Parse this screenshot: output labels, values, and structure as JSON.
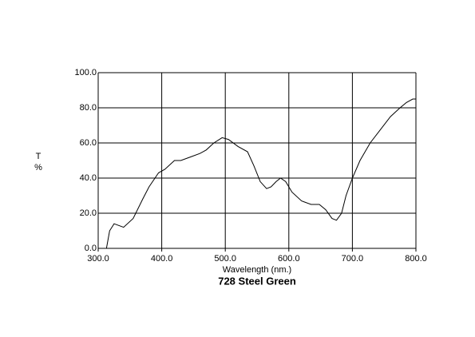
{
  "chart_data": {
    "type": "line",
    "title": "728 Steel Green",
    "xlabel": "Wavelength (nm.)",
    "ylabel_lines": [
      "T",
      "%"
    ],
    "xlim": [
      300,
      800
    ],
    "ylim": [
      0,
      100
    ],
    "xticks": [
      {
        "value": 300,
        "label": "300.0"
      },
      {
        "value": 400,
        "label": "400.0"
      },
      {
        "value": 500,
        "label": "500.0"
      },
      {
        "value": 600,
        "label": "600.0"
      },
      {
        "value": 700,
        "label": "700.0"
      },
      {
        "value": 800,
        "label": "800.0"
      }
    ],
    "yticks": [
      {
        "value": 0,
        "label": "0.0"
      },
      {
        "value": 20,
        "label": "20.0"
      },
      {
        "value": 40,
        "label": "40.0"
      },
      {
        "value": 60,
        "label": "60.0"
      },
      {
        "value": 80,
        "label": "80.0"
      },
      {
        "value": 100,
        "label": "100.0"
      }
    ],
    "grid": true,
    "color": "#000000",
    "x": [
      300,
      313,
      318,
      325,
      340,
      355,
      370,
      380,
      395,
      405,
      420,
      430,
      445,
      460,
      470,
      482,
      495,
      505,
      520,
      535,
      545,
      555,
      565,
      572,
      580,
      587,
      595,
      605,
      620,
      635,
      648,
      658,
      668,
      675,
      683,
      690,
      700,
      712,
      728,
      745,
      760,
      775,
      785,
      795,
      800
    ],
    "values": [
      0,
      0,
      10,
      14,
      12,
      17,
      28,
      35,
      43,
      45,
      50,
      50,
      52,
      54,
      56,
      60,
      63,
      62,
      58,
      55,
      47,
      38,
      34,
      35,
      38,
      40,
      38,
      32,
      27,
      25,
      25,
      22,
      17,
      16,
      20,
      30,
      40,
      50,
      60,
      68,
      75,
      80,
      83,
      85,
      85
    ]
  }
}
